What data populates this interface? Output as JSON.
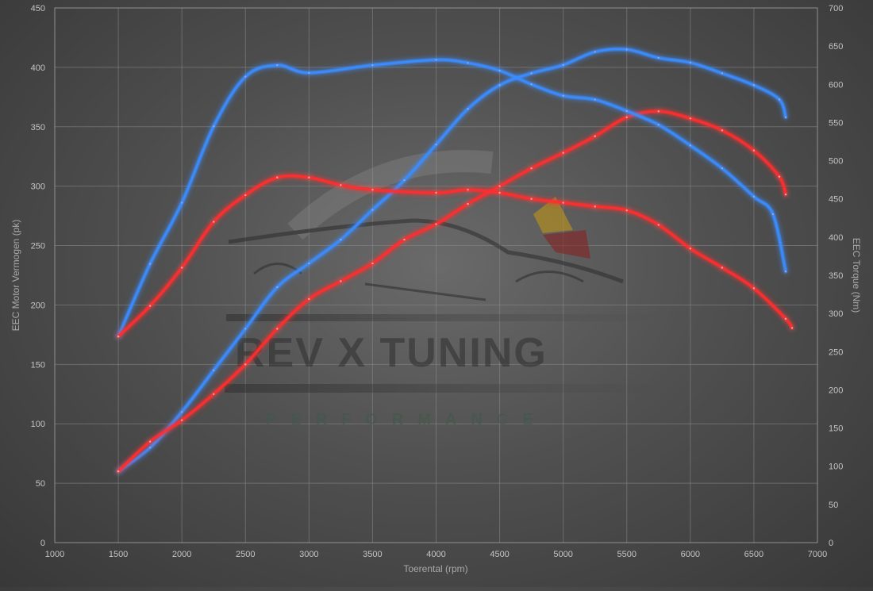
{
  "chart_data": {
    "type": "line",
    "title": "",
    "xlabel": "Toerental (rpm)",
    "ylabel_left": "EEC Motor Vermogen (pk)",
    "ylabel_right": "EEC Torque (Nm)",
    "xlim": [
      1000,
      7000
    ],
    "ylim_left": [
      0,
      450
    ],
    "ylim_right": [
      0,
      700
    ],
    "x_ticks": [
      1000,
      1500,
      2000,
      2500,
      3000,
      3500,
      4000,
      4500,
      5000,
      5500,
      6000,
      6500,
      7000
    ],
    "y_left_ticks": [
      0,
      50,
      100,
      150,
      200,
      250,
      300,
      350,
      400,
      450
    ],
    "y_right_ticks": [
      0,
      50,
      100,
      150,
      200,
      250,
      300,
      350,
      400,
      450,
      500,
      550,
      600,
      650,
      700
    ],
    "grid": true,
    "legend": "none",
    "watermark": {
      "text_main": "REV X TUNING",
      "text_sub": "PERFORMANCE"
    },
    "series": [
      {
        "axis": "left",
        "quantity": "power",
        "color": "#3a8cff",
        "points": [
          [
            1500,
            60
          ],
          [
            1750,
            80
          ],
          [
            2000,
            110
          ],
          [
            2250,
            145
          ],
          [
            2500,
            180
          ],
          [
            2750,
            215
          ],
          [
            3000,
            235
          ],
          [
            3250,
            255
          ],
          [
            3500,
            280
          ],
          [
            3750,
            305
          ],
          [
            4000,
            335
          ],
          [
            4250,
            365
          ],
          [
            4500,
            385
          ],
          [
            4750,
            395
          ],
          [
            5000,
            402
          ],
          [
            5250,
            413
          ],
          [
            5500,
            415
          ],
          [
            5750,
            408
          ],
          [
            6000,
            404
          ],
          [
            6250,
            395
          ],
          [
            6500,
            385
          ],
          [
            6700,
            373
          ],
          [
            6750,
            358
          ]
        ]
      },
      {
        "axis": "left",
        "quantity": "power",
        "color": "#ff2e2e",
        "points": [
          [
            1500,
            60
          ],
          [
            1750,
            85
          ],
          [
            2000,
            103
          ],
          [
            2250,
            125
          ],
          [
            2500,
            150
          ],
          [
            2750,
            180
          ],
          [
            3000,
            205
          ],
          [
            3250,
            220
          ],
          [
            3500,
            235
          ],
          [
            3750,
            255
          ],
          [
            4000,
            268
          ],
          [
            4250,
            285
          ],
          [
            4500,
            300
          ],
          [
            4750,
            315
          ],
          [
            5000,
            328
          ],
          [
            5250,
            342
          ],
          [
            5500,
            358
          ],
          [
            5750,
            363
          ],
          [
            6000,
            357
          ],
          [
            6250,
            347
          ],
          [
            6500,
            330
          ],
          [
            6700,
            308
          ],
          [
            6750,
            293
          ]
        ]
      },
      {
        "axis": "right",
        "quantity": "torque",
        "color": "#3a8cff",
        "points": [
          [
            1500,
            270
          ],
          [
            1750,
            365
          ],
          [
            2000,
            445
          ],
          [
            2250,
            545
          ],
          [
            2500,
            610
          ],
          [
            2750,
            625
          ],
          [
            3000,
            615
          ],
          [
            3500,
            625
          ],
          [
            4000,
            632
          ],
          [
            4250,
            628
          ],
          [
            4500,
            618
          ],
          [
            4750,
            600
          ],
          [
            5000,
            585
          ],
          [
            5250,
            580
          ],
          [
            5500,
            565
          ],
          [
            5750,
            547
          ],
          [
            6000,
            520
          ],
          [
            6250,
            490
          ],
          [
            6500,
            453
          ],
          [
            6650,
            430
          ],
          [
            6750,
            355
          ]
        ]
      },
      {
        "axis": "right",
        "quantity": "torque",
        "color": "#ff2e2e",
        "points": [
          [
            1500,
            270
          ],
          [
            1750,
            310
          ],
          [
            2000,
            360
          ],
          [
            2250,
            420
          ],
          [
            2500,
            455
          ],
          [
            2750,
            478
          ],
          [
            3000,
            478
          ],
          [
            3250,
            468
          ],
          [
            3500,
            462
          ],
          [
            4000,
            458
          ],
          [
            4250,
            462
          ],
          [
            4500,
            458
          ],
          [
            4750,
            450
          ],
          [
            5000,
            445
          ],
          [
            5250,
            440
          ],
          [
            5500,
            435
          ],
          [
            5750,
            416
          ],
          [
            6000,
            385
          ],
          [
            6250,
            360
          ],
          [
            6500,
            333
          ],
          [
            6750,
            293
          ],
          [
            6800,
            281
          ]
        ]
      }
    ]
  }
}
